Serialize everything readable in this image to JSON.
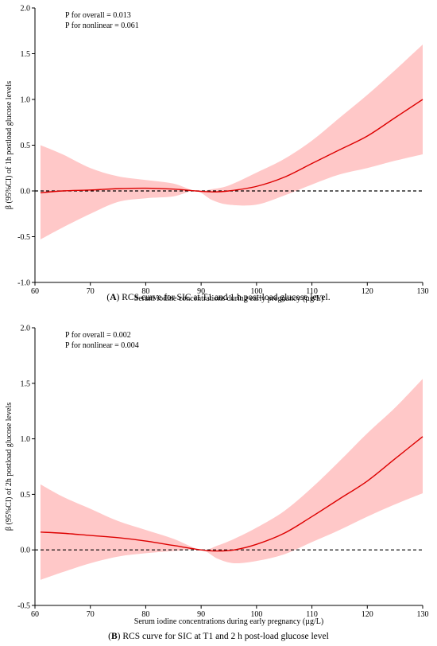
{
  "panels": [
    {
      "caption_letter": "A",
      "caption_text": ") RCS curve for SIC at T1 and 1 h post-load glucose level.",
      "annotations": [
        "P for overall = 0.013",
        "P for nonlinear = 0.061"
      ],
      "chart_data": {
        "type": "line",
        "xlabel": "Serum iodine concentrations during early pregnancy (µg/L)",
        "ylabel": "β (95%CI) of 1h postload glucose levels",
        "xlim": [
          60,
          130
        ],
        "ylim": [
          -1.0,
          2.0
        ],
        "xticks": [
          60,
          70,
          80,
          90,
          100,
          110,
          120,
          130
        ],
        "yticks": [
          -1.0,
          -0.5,
          0.0,
          0.5,
          1.0,
          1.5,
          2.0
        ],
        "ytick_labels": [
          "-1.0",
          "-0.5",
          "0.0",
          "0.5",
          "1.0",
          "1.5",
          "2.0"
        ],
        "reference_line": 0,
        "colors": {
          "line": "#dd0000",
          "band": "#ffc8c8",
          "ref": "#000000"
        },
        "series": [
          {
            "x": [
              61,
              65,
              70,
              75,
              80,
              85,
              89,
              92,
              95,
              100,
              105,
              110,
              115,
              120,
              125,
              130
            ],
            "y": [
              -0.02,
              0.0,
              0.01,
              0.025,
              0.03,
              0.02,
              0.0,
              -0.01,
              0.0,
              0.05,
              0.15,
              0.3,
              0.45,
              0.6,
              0.8,
              1.0
            ],
            "lower": [
              -0.53,
              -0.4,
              -0.25,
              -0.12,
              -0.08,
              -0.06,
              0.0,
              -0.1,
              -0.15,
              -0.15,
              -0.05,
              0.07,
              0.18,
              0.25,
              0.33,
              0.4
            ],
            "upper": [
              0.5,
              0.4,
              0.25,
              0.16,
              0.12,
              0.08,
              0.0,
              0.02,
              0.06,
              0.2,
              0.35,
              0.55,
              0.8,
              1.05,
              1.32,
              1.6
            ]
          }
        ]
      }
    },
    {
      "caption_letter": "B",
      "caption_text": ") RCS curve for SIC at T1 and 2 h post-load glucose level",
      "annotations": [
        "P for overall = 0.002",
        "P for nonlinear = 0.004"
      ],
      "chart_data": {
        "type": "line",
        "xlabel": "Serum iodine concentrations during early pregnancy (µg/L)",
        "ylabel": "β (95%CI) of 2h postload glucose levels",
        "xlim": [
          60,
          130
        ],
        "ylim": [
          -0.5,
          2.0
        ],
        "xticks": [
          60,
          70,
          80,
          90,
          100,
          110,
          120,
          130
        ],
        "yticks": [
          -0.5,
          0.0,
          0.5,
          1.0,
          1.5,
          2.0
        ],
        "ytick_labels": [
          "-0.5",
          "0.0",
          "0.5",
          "1.0",
          "1.5",
          "2.0"
        ],
        "reference_line": 0,
        "colors": {
          "line": "#dd0000",
          "band": "#ffc8c8",
          "ref": "#000000"
        },
        "series": [
          {
            "x": [
              61,
              65,
              70,
              75,
              80,
              85,
              90,
              93,
              96,
              100,
              105,
              110,
              115,
              120,
              125,
              130
            ],
            "y": [
              0.16,
              0.15,
              0.13,
              0.11,
              0.08,
              0.04,
              0.0,
              -0.01,
              0.0,
              0.05,
              0.15,
              0.3,
              0.46,
              0.62,
              0.82,
              1.02
            ],
            "lower": [
              -0.27,
              -0.2,
              -0.12,
              -0.06,
              -0.03,
              -0.01,
              0.0,
              -0.08,
              -0.12,
              -0.1,
              -0.04,
              0.07,
              0.18,
              0.3,
              0.41,
              0.51
            ],
            "upper": [
              0.59,
              0.48,
              0.37,
              0.26,
              0.18,
              0.1,
              0.0,
              0.04,
              0.1,
              0.2,
              0.35,
              0.56,
              0.8,
              1.05,
              1.28,
              1.54
            ]
          }
        ]
      }
    }
  ]
}
